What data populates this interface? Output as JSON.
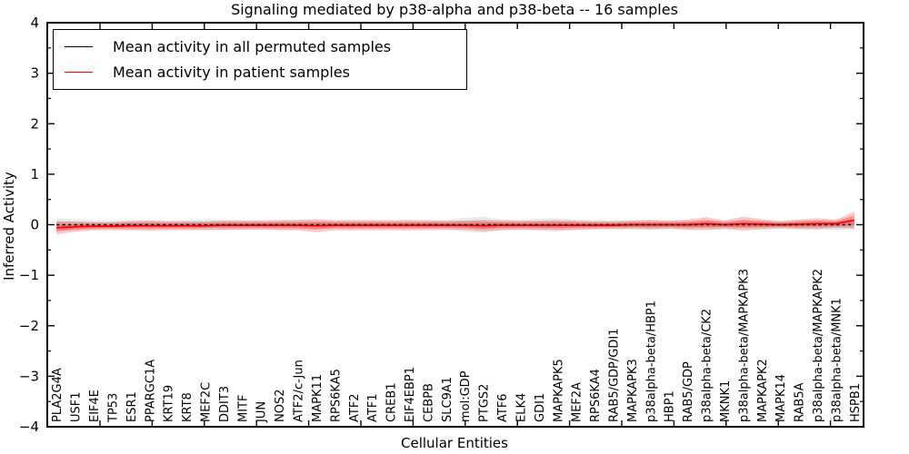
{
  "chart_data": {
    "type": "line",
    "title": "Signaling mediated by p38-alpha and p38-beta -- 16 samples",
    "xlabel": "Cellular Entities",
    "ylabel": "Inferred Activity",
    "ylim": [
      -4,
      4
    ],
    "yticks": [
      4,
      3,
      2,
      1,
      0,
      -1,
      -2,
      -3,
      -4
    ],
    "ytick_labels": [
      "4",
      "3",
      "2",
      "1",
      "0",
      "−1",
      "−2",
      "−3",
      "−4"
    ],
    "grid": false,
    "legend_position": "upper-left",
    "frame_color": "#000000",
    "categories": [
      "PLA2G4A",
      "USF1",
      "EIF4E",
      "TP53",
      "ESR1",
      "PPARGC1A",
      "KRT19",
      "KRT8",
      "MEF2C",
      "DDIT3",
      "MITF",
      "JUN",
      "NOS2",
      "ATF2/c-Jun",
      "MAPK11",
      "RPS6KA5",
      "ATF2",
      "ATF1",
      "CREB1",
      "EIF4EBP1",
      "CEBPB",
      "SLC9A1",
      "mol:GDP",
      "PTGS2",
      "ATF6",
      "ELK4",
      "GDI1",
      "MAPKAPK5",
      "MEF2A",
      "RPS6KA4",
      "RAB5/GDP/GDI1",
      "MAPKAPK3",
      "p38alpha-beta/HBP1",
      "HBP1",
      "RAB5/GDP",
      "p38alpha-beta/CK2",
      "MKNK1",
      "p38alpha-beta/MAPKAPK3",
      "MAPKAPK2",
      "MAPK14",
      "RAB5A",
      "p38alpha-beta/MAPKAPK2",
      "p38alpha-beta/MNK1",
      "HSPB1"
    ],
    "series": [
      {
        "name": "Mean activity in all permuted samples",
        "color": "#000000",
        "line_style": "dashed",
        "values": [
          0,
          0,
          0,
          0,
          0,
          0,
          0,
          0,
          0,
          0,
          0,
          0,
          0,
          0,
          0,
          0,
          0,
          0,
          0,
          0,
          0,
          0,
          0,
          0,
          0,
          0,
          0,
          0,
          0,
          0,
          0,
          0,
          0,
          0,
          0,
          0,
          0,
          0,
          0,
          0,
          0,
          0,
          0,
          0
        ],
        "band": [
          0.12,
          0.11,
          0.09,
          0.08,
          0.1,
          0.09,
          0.08,
          0.09,
          0.11,
          0.1,
          0.09,
          0.08,
          0.09,
          0.1,
          0.09,
          0.08,
          0.09,
          0.08,
          0.08,
          0.09,
          0.08,
          0.09,
          0.14,
          0.16,
          0.1,
          0.09,
          0.12,
          0.13,
          0.1,
          0.09,
          0.08,
          0.09,
          0.1,
          0.08,
          0.09,
          0.08,
          0.09,
          0.08,
          0.09,
          0.08,
          0.1,
          0.09,
          0.1,
          0.09
        ],
        "band_color": "#888888",
        "band_opacity_outer": 0.18,
        "band_opacity_inner": 0.25
      },
      {
        "name": "Mean activity in patient samples",
        "color": "#ff0000",
        "line_style": "solid",
        "values": [
          -0.06,
          -0.04,
          -0.03,
          -0.03,
          -0.02,
          -0.02,
          -0.02,
          -0.02,
          -0.02,
          -0.01,
          -0.01,
          -0.01,
          -0.01,
          -0.01,
          -0.02,
          -0.01,
          -0.01,
          -0.01,
          -0.01,
          -0.01,
          -0.01,
          -0.01,
          -0.01,
          -0.02,
          -0.01,
          -0.01,
          -0.01,
          -0.01,
          -0.01,
          -0.01,
          -0.01,
          0,
          0,
          0,
          0,
          0.02,
          0,
          0.02,
          0.01,
          0,
          0.01,
          0.02,
          0.02,
          0.09
        ],
        "band": [
          0.13,
          0.1,
          0.08,
          0.08,
          0.09,
          0.1,
          0.09,
          0.09,
          0.08,
          0.09,
          0.09,
          0.09,
          0.1,
          0.1,
          0.13,
          0.1,
          0.1,
          0.1,
          0.1,
          0.1,
          0.1,
          0.09,
          0.09,
          0.11,
          0.1,
          0.09,
          0.09,
          0.1,
          0.09,
          0.08,
          0.08,
          0.08,
          0.09,
          0.08,
          0.1,
          0.13,
          0.08,
          0.14,
          0.1,
          0.07,
          0.09,
          0.11,
          0.08,
          0.17
        ],
        "band_color": "#ff2222",
        "band_opacity_outer": 0.25,
        "band_opacity_inner": 0.35
      }
    ]
  }
}
